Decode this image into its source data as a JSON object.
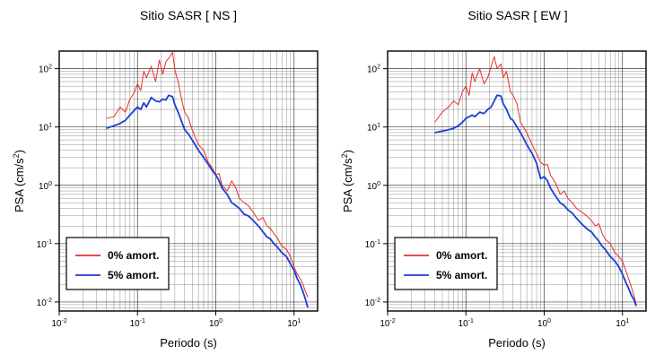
{
  "chart_data": [
    {
      "type": "line",
      "title": "Sitio SASR [ NS ]",
      "xlabel": "Periodo (s)",
      "ylabel_main": "PSA (cm/s",
      "ylabel_sup": "2",
      "ylabel_tail": ")",
      "xscale": "log",
      "yscale": "log",
      "xlim": [
        0.01,
        20
      ],
      "ylim": [
        0.007,
        200
      ],
      "grid": true,
      "legend_position": "bottom-left",
      "series": [
        {
          "name": "0% amort.",
          "color": "#e8302a",
          "x": [
            0.04,
            0.05,
            0.06,
            0.07,
            0.08,
            0.09,
            0.1,
            0.11,
            0.12,
            0.13,
            0.15,
            0.17,
            0.19,
            0.21,
            0.23,
            0.25,
            0.28,
            0.3,
            0.33,
            0.37,
            0.4,
            0.45,
            0.5,
            0.6,
            0.7,
            0.8,
            0.9,
            1.0,
            1.1,
            1.2,
            1.4,
            1.6,
            1.8,
            2.0,
            2.3,
            2.6,
            3.0,
            3.5,
            4.0,
            4.5,
            5.0,
            5.5,
            6.0,
            7.0,
            8.0,
            9.0,
            10.0,
            11.0,
            12.0,
            13.0,
            14.0,
            15.0
          ],
          "y": [
            14,
            15,
            22,
            18,
            30,
            38,
            55,
            42,
            90,
            70,
            110,
            60,
            140,
            80,
            130,
            150,
            190,
            95,
            60,
            28,
            18,
            14,
            9,
            5,
            4,
            2.5,
            2,
            1.5,
            1.6,
            1,
            0.8,
            1.2,
            0.9,
            0.6,
            0.5,
            0.45,
            0.35,
            0.25,
            0.28,
            0.2,
            0.18,
            0.15,
            0.13,
            0.09,
            0.08,
            0.06,
            0.04,
            0.03,
            0.025,
            0.02,
            0.015,
            0.012
          ]
        },
        {
          "name": "5% amort.",
          "color": "#1a3fd6",
          "x": [
            0.04,
            0.05,
            0.06,
            0.07,
            0.08,
            0.09,
            0.1,
            0.11,
            0.12,
            0.13,
            0.15,
            0.17,
            0.19,
            0.21,
            0.23,
            0.25,
            0.28,
            0.3,
            0.33,
            0.37,
            0.4,
            0.45,
            0.5,
            0.6,
            0.7,
            0.8,
            0.9,
            1.0,
            1.1,
            1.2,
            1.4,
            1.6,
            1.8,
            2.0,
            2.3,
            2.6,
            3.0,
            3.5,
            4.0,
            4.5,
            5.0,
            5.5,
            6.0,
            7.0,
            8.0,
            9.0,
            10.0,
            11.0,
            12.0,
            13.0,
            14.0,
            15.0
          ],
          "y": [
            9.5,
            10.5,
            11.5,
            13,
            16,
            19,
            22,
            20,
            26,
            22,
            32,
            28,
            27,
            30,
            29,
            35,
            33,
            24,
            18,
            12,
            9,
            7.5,
            6,
            4,
            3,
            2.3,
            1.8,
            1.5,
            1.2,
            0.9,
            0.7,
            0.5,
            0.45,
            0.4,
            0.32,
            0.3,
            0.25,
            0.2,
            0.16,
            0.13,
            0.12,
            0.1,
            0.09,
            0.07,
            0.06,
            0.045,
            0.035,
            0.025,
            0.02,
            0.015,
            0.011,
            0.008
          ]
        }
      ]
    },
    {
      "type": "line",
      "title": "Sitio SASR [ EW ]",
      "xlabel": "Periodo (s)",
      "ylabel_main": "PSA (cm/s",
      "ylabel_sup": "2",
      "ylabel_tail": ")",
      "xscale": "log",
      "yscale": "log",
      "xlim": [
        0.01,
        20
      ],
      "ylim": [
        0.007,
        200
      ],
      "grid": true,
      "legend_position": "bottom-left",
      "series": [
        {
          "name": "0% amort.",
          "color": "#e8302a",
          "x": [
            0.04,
            0.05,
            0.06,
            0.07,
            0.08,
            0.09,
            0.1,
            0.11,
            0.12,
            0.13,
            0.15,
            0.17,
            0.19,
            0.21,
            0.23,
            0.25,
            0.28,
            0.3,
            0.33,
            0.37,
            0.4,
            0.45,
            0.5,
            0.6,
            0.7,
            0.8,
            0.9,
            1.0,
            1.1,
            1.2,
            1.4,
            1.6,
            1.8,
            2.0,
            2.3,
            2.6,
            3.0,
            3.5,
            4.0,
            4.5,
            5.0,
            5.5,
            6.0,
            7.0,
            8.0,
            9.0,
            10.0,
            11.0,
            12.0,
            13.0,
            14.0,
            15.0
          ],
          "y": [
            12,
            18,
            22,
            28,
            24,
            40,
            50,
            35,
            85,
            60,
            100,
            55,
            70,
            110,
            160,
            100,
            120,
            70,
            90,
            40,
            35,
            25,
            12,
            8,
            5,
            3.5,
            2.5,
            2.2,
            2.3,
            1.5,
            1.1,
            0.7,
            0.8,
            0.6,
            0.5,
            0.4,
            0.35,
            0.3,
            0.25,
            0.2,
            0.22,
            0.15,
            0.12,
            0.1,
            0.07,
            0.06,
            0.05,
            0.035,
            0.025,
            0.018,
            0.013,
            0.009
          ]
        },
        {
          "name": "5% amort.",
          "color": "#1a3fd6",
          "x": [
            0.04,
            0.05,
            0.06,
            0.07,
            0.08,
            0.09,
            0.1,
            0.11,
            0.12,
            0.13,
            0.15,
            0.17,
            0.19,
            0.21,
            0.23,
            0.25,
            0.28,
            0.3,
            0.33,
            0.37,
            0.4,
            0.45,
            0.5,
            0.6,
            0.7,
            0.8,
            0.9,
            1.0,
            1.1,
            1.2,
            1.4,
            1.6,
            1.8,
            2.0,
            2.3,
            2.6,
            3.0,
            3.5,
            4.0,
            4.5,
            5.0,
            5.5,
            6.0,
            7.0,
            8.0,
            9.0,
            10.0,
            11.0,
            12.0,
            13.0,
            14.0,
            15.0
          ],
          "y": [
            8,
            8.5,
            9,
            9.5,
            10.5,
            12,
            14,
            15,
            16,
            15,
            18,
            17,
            20,
            22,
            28,
            35,
            34,
            25,
            20,
            14,
            13,
            10,
            8,
            5,
            3.5,
            2.4,
            1.3,
            1.4,
            1.2,
            0.9,
            0.65,
            0.5,
            0.45,
            0.38,
            0.33,
            0.27,
            0.22,
            0.18,
            0.16,
            0.13,
            0.11,
            0.09,
            0.08,
            0.06,
            0.05,
            0.04,
            0.03,
            0.022,
            0.017,
            0.013,
            0.011,
            0.0085
          ]
        }
      ]
    }
  ]
}
